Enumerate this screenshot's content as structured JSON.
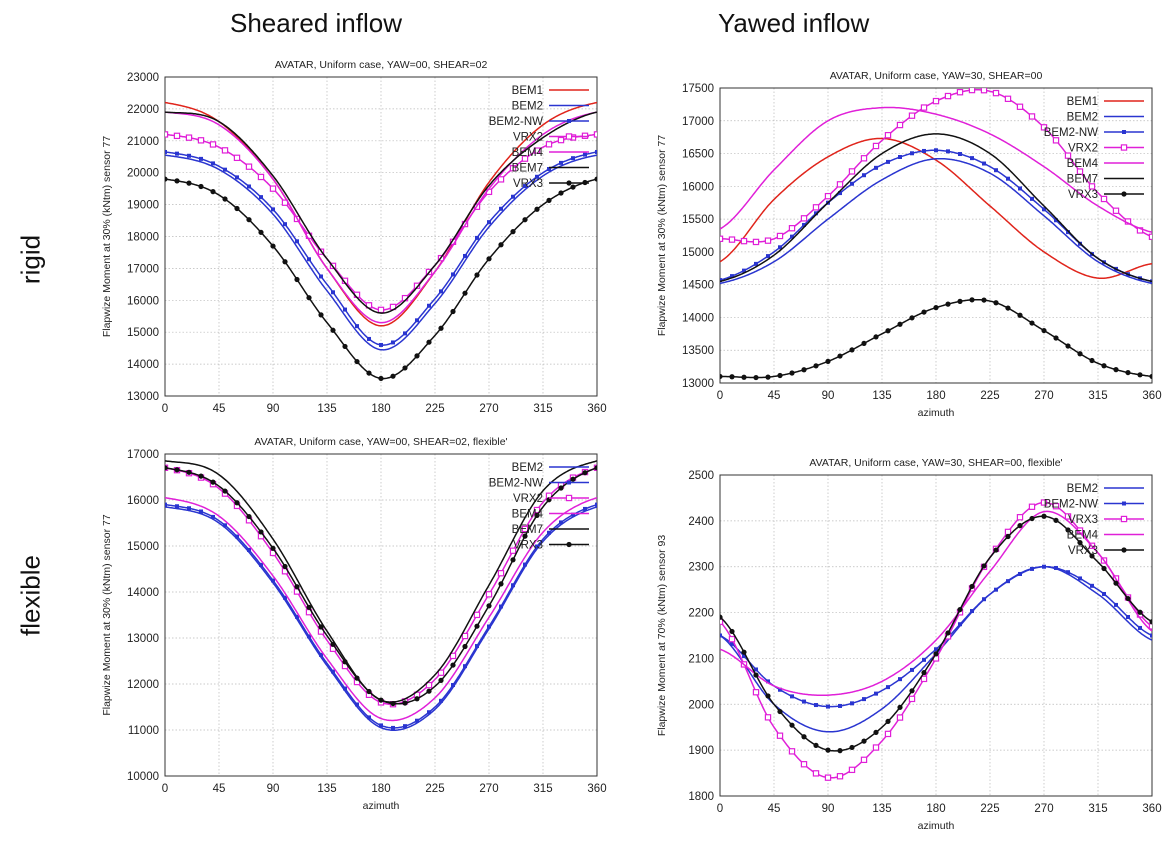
{
  "headings": {
    "col1": "Sheared inflow",
    "col2": "Yawed inflow",
    "row1": "rigid",
    "row2": "flexible"
  },
  "chart_data": [
    {
      "type": "line",
      "title": "AVATAR, Uniform case, YAW=00, SHEAR=02",
      "xlabel": "",
      "ylabel": "Flapwize Moment at 30%  (kNtm) sensor 77",
      "xlim": [
        0,
        360
      ],
      "ylim": [
        13000,
        23000
      ],
      "xticks": [
        0,
        45,
        90,
        135,
        180,
        225,
        270,
        315,
        360
      ],
      "yticks": [
        13000,
        14000,
        15000,
        16000,
        17000,
        18000,
        19000,
        20000,
        21000,
        22000,
        23000
      ],
      "grid": true,
      "legend_position": "top-right",
      "x": [
        0,
        45,
        90,
        135,
        180,
        225,
        270,
        315,
        360
      ],
      "series": [
        {
          "name": "BEM1",
          "color": "#e0241b",
          "marker": "none",
          "values": [
            22200,
            21600,
            19800,
            17000,
            15200,
            16900,
            19700,
            21500,
            22200
          ]
        },
        {
          "name": "BEM2",
          "color": "#2a35d0",
          "marker": "none",
          "values": [
            20550,
            20100,
            18700,
            16300,
            14450,
            15900,
            18300,
            19900,
            20550
          ]
        },
        {
          "name": "BEM2-NW",
          "color": "#2a35d0",
          "marker": "square",
          "values": [
            20650,
            20200,
            18850,
            16500,
            14600,
            16050,
            18450,
            20000,
            20650
          ]
        },
        {
          "name": "VRX2",
          "color": "#e020d8",
          "marker": "square-open",
          "values": [
            21200,
            20800,
            19500,
            17300,
            15700,
            17100,
            19400,
            20800,
            21200
          ]
        },
        {
          "name": "BEM4",
          "color": "#e020d8",
          "marker": "none",
          "values": [
            21900,
            21500,
            19800,
            17000,
            15300,
            16900,
            19500,
            21200,
            21900
          ]
        },
        {
          "name": "BEM7",
          "color": "#111111",
          "marker": "none",
          "values": [
            21900,
            21600,
            19900,
            17300,
            15600,
            17100,
            19600,
            21100,
            21900
          ]
        },
        {
          "name": "VRX3",
          "color": "#111111",
          "marker": "circle",
          "values": [
            19800,
            19300,
            17700,
            15300,
            13550,
            14900,
            17300,
            19000,
            19800
          ]
        }
      ]
    },
    {
      "type": "line",
      "title": "AVATAR, Uniform case, YAW=30, SHEAR=00",
      "xlabel": "azimuth",
      "ylabel": "Flapwize Moment at 30%  (kNtm) sensor 77",
      "xlim": [
        0,
        360
      ],
      "ylim": [
        13000,
        17500
      ],
      "xticks": [
        0,
        45,
        90,
        135,
        180,
        225,
        270,
        315,
        360
      ],
      "yticks": [
        13000,
        13500,
        14000,
        14500,
        15000,
        15500,
        16000,
        16500,
        17000,
        17500
      ],
      "grid": true,
      "legend_position": "top-right",
      "x": [
        0,
        45,
        90,
        135,
        180,
        225,
        270,
        315,
        360
      ],
      "series": [
        {
          "name": "BEM1",
          "color": "#e0241b",
          "marker": "none",
          "values": [
            14850,
            15800,
            16450,
            16730,
            16400,
            15700,
            15000,
            14600,
            14820
          ]
        },
        {
          "name": "BEM2",
          "color": "#2a35d0",
          "marker": "none",
          "values": [
            14520,
            14850,
            15500,
            16100,
            16420,
            16200,
            15550,
            14850,
            14520
          ]
        },
        {
          "name": "BEM2-NW",
          "color": "#2a35d0",
          "marker": "square",
          "values": [
            14570,
            15000,
            15750,
            16330,
            16550,
            16300,
            15650,
            14900,
            14550
          ]
        },
        {
          "name": "VRX2",
          "color": "#e020d8",
          "marker": "square-open",
          "values": [
            15200,
            15200,
            15850,
            16700,
            17300,
            17450,
            16900,
            15900,
            15230
          ]
        },
        {
          "name": "BEM4",
          "color": "#e020d8",
          "marker": "none",
          "values": [
            15350,
            16250,
            17000,
            17200,
            17100,
            16800,
            16300,
            15700,
            15300
          ]
        },
        {
          "name": "BEM7",
          "color": "#111111",
          "marker": "none",
          "values": [
            14550,
            14950,
            15750,
            16500,
            16800,
            16500,
            15700,
            14900,
            14550
          ]
        },
        {
          "name": "VRX3",
          "color": "#111111",
          "marker": "circle",
          "values": [
            13100,
            13100,
            13330,
            13750,
            14150,
            14250,
            13800,
            13300,
            13100
          ]
        }
      ]
    },
    {
      "type": "line",
      "title": "AVATAR, Uniform case, YAW=00, SHEAR=02, flexible'",
      "xlabel": "azimuth",
      "ylabel": "Flapwize Moment at 30%  (kNtm) sensor 77",
      "xlim": [
        0,
        360
      ],
      "ylim": [
        10000,
        17000
      ],
      "xticks": [
        0,
        45,
        90,
        135,
        180,
        225,
        270,
        315,
        360
      ],
      "yticks": [
        10000,
        11000,
        12000,
        13000,
        14000,
        15000,
        16000,
        17000
      ],
      "grid": true,
      "legend_position": "top-right",
      "x": [
        0,
        45,
        90,
        135,
        180,
        225,
        270,
        315,
        360
      ],
      "series": [
        {
          "name": "BEM2",
          "color": "#2a35d0",
          "marker": "none",
          "values": [
            15850,
            15500,
            14200,
            12400,
            11050,
            11450,
            13200,
            15100,
            15850
          ]
        },
        {
          "name": "BEM2-NW",
          "color": "#2a35d0",
          "marker": "square",
          "values": [
            15900,
            15550,
            14250,
            12450,
            11100,
            11500,
            13250,
            15150,
            15900
          ]
        },
        {
          "name": "VRX2",
          "color": "#e020d8",
          "marker": "square-open",
          "values": [
            16700,
            16250,
            14850,
            12950,
            11600,
            12100,
            13950,
            15950,
            16700
          ]
        },
        {
          "name": "BEM4",
          "color": "#e020d8",
          "marker": "none",
          "values": [
            16050,
            15650,
            14350,
            12550,
            11250,
            11700,
            13450,
            15300,
            16050
          ]
        },
        {
          "name": "BEM7",
          "color": "#111111",
          "marker": "none",
          "values": [
            16850,
            16550,
            15150,
            13150,
            11650,
            12200,
            14150,
            16200,
            16850
          ]
        },
        {
          "name": "VRX3",
          "color": "#111111",
          "marker": "circle",
          "values": [
            16700,
            16300,
            14950,
            13050,
            11650,
            11950,
            13700,
            15850,
            16700
          ]
        }
      ]
    },
    {
      "type": "line",
      "title": "AVATAR, Uniform case, YAW=30, SHEAR=00, flexible'",
      "xlabel": "azimuth",
      "ylabel": "Flapwize Moment at 70%  (kNtm) sensor 93",
      "xlim": [
        0,
        360
      ],
      "ylim": [
        1800,
        2500
      ],
      "xticks": [
        0,
        45,
        90,
        135,
        180,
        225,
        270,
        315,
        360
      ],
      "yticks": [
        1800,
        1900,
        2000,
        2100,
        2200,
        2300,
        2400,
        2500
      ],
      "grid": true,
      "legend_position": "top-right",
      "x": [
        0,
        45,
        90,
        135,
        180,
        225,
        270,
        315,
        360
      ],
      "series": [
        {
          "name": "BEM2",
          "color": "#2a35d0",
          "marker": "none",
          "values": [
            2150,
            2000,
            1940,
            1990,
            2110,
            2240,
            2300,
            2240,
            2140
          ]
        },
        {
          "name": "BEM2-NW",
          "color": "#2a35d0",
          "marker": "square",
          "values": [
            2150,
            2040,
            1995,
            2030,
            2120,
            2240,
            2300,
            2250,
            2150
          ]
        },
        {
          "name": "VRX3",
          "color": "#e020d8",
          "marker": "square-open",
          "values": [
            2180,
            1950,
            1840,
            1920,
            2100,
            2320,
            2440,
            2330,
            2170
          ]
        },
        {
          "name": "BEM4",
          "color": "#e020d8",
          "marker": "none",
          "values": [
            2120,
            2040,
            2020,
            2050,
            2140,
            2290,
            2420,
            2330,
            2160
          ]
        },
        {
          "name": "VRX3",
          "color": "#111111",
          "marker": "circle",
          "values": [
            2190,
            2000,
            1900,
            1950,
            2110,
            2320,
            2410,
            2310,
            2180
          ]
        }
      ]
    }
  ]
}
